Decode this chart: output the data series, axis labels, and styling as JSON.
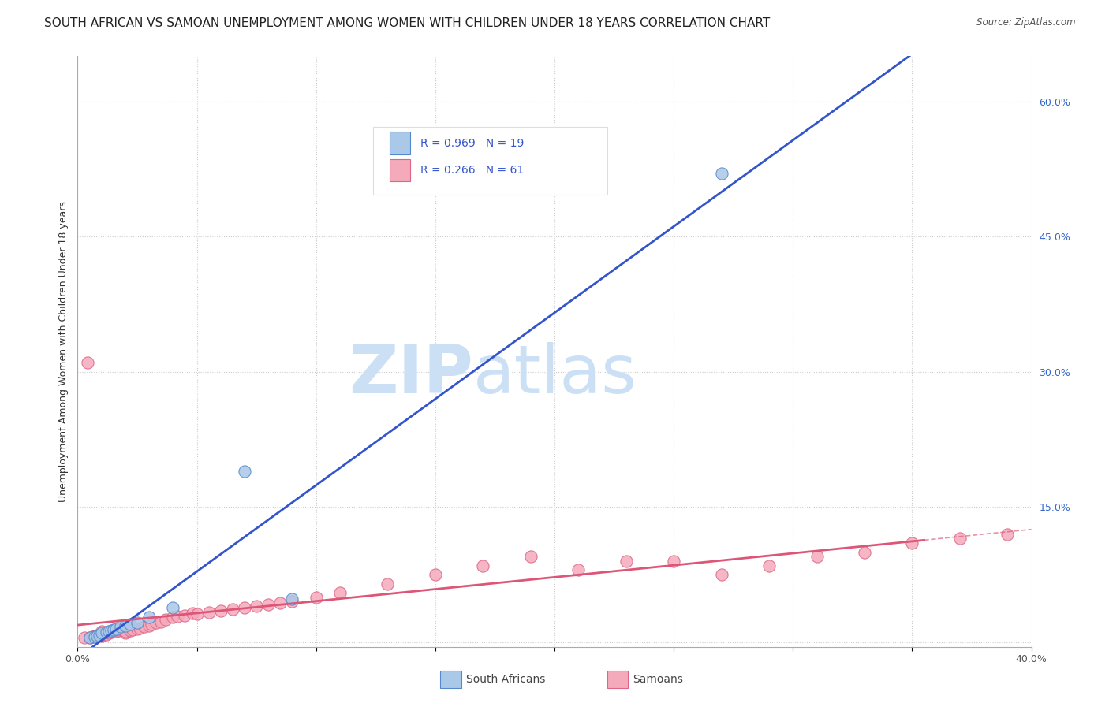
{
  "title": "SOUTH AFRICAN VS SAMOAN UNEMPLOYMENT AMONG WOMEN WITH CHILDREN UNDER 18 YEARS CORRELATION CHART",
  "source": "Source: ZipAtlas.com",
  "ylabel": "Unemployment Among Women with Children Under 18 years",
  "xlim": [
    0.0,
    0.4
  ],
  "ylim": [
    -0.005,
    0.65
  ],
  "xticks": [
    0.0,
    0.05,
    0.1,
    0.15,
    0.2,
    0.25,
    0.3,
    0.35,
    0.4
  ],
  "xtick_labels": [
    "0.0%",
    "",
    "",
    "",
    "",
    "",
    "",
    "",
    "40.0%"
  ],
  "yticks_right": [
    0.0,
    0.15,
    0.3,
    0.45,
    0.6
  ],
  "ytick_labels_right": [
    "",
    "15.0%",
    "30.0%",
    "45.0%",
    "60.0%"
  ],
  "grid_color": "#cccccc",
  "background_color": "#ffffff",
  "watermark_ZIP": "ZIP",
  "watermark_atlas": "atlas",
  "watermark_color": "#cce0f5",
  "south_african_color": "#aac8e8",
  "south_african_edge_color": "#5588cc",
  "south_african_line_color": "#3355cc",
  "samoan_color": "#f5aabb",
  "samoan_edge_color": "#dd6688",
  "samoan_line_color": "#dd5577",
  "legend_R1": "R = 0.969",
  "legend_N1": "N = 19",
  "legend_R2": "R = 0.266",
  "legend_N2": "N = 61",
  "legend_text_color": "#3355cc",
  "south_african_x": [
    0.005,
    0.007,
    0.008,
    0.009,
    0.01,
    0.012,
    0.013,
    0.014,
    0.015,
    0.016,
    0.018,
    0.02,
    0.022,
    0.025,
    0.03,
    0.04,
    0.07,
    0.09,
    0.27
  ],
  "south_african_y": [
    0.005,
    0.006,
    0.007,
    0.008,
    0.01,
    0.011,
    0.012,
    0.013,
    0.014,
    0.015,
    0.017,
    0.018,
    0.02,
    0.022,
    0.028,
    0.038,
    0.19,
    0.048,
    0.52
  ],
  "samoan_x": [
    0.003,
    0.005,
    0.006,
    0.007,
    0.008,
    0.009,
    0.01,
    0.01,
    0.01,
    0.01,
    0.01,
    0.012,
    0.013,
    0.014,
    0.015,
    0.016,
    0.017,
    0.018,
    0.019,
    0.02,
    0.02,
    0.022,
    0.023,
    0.025,
    0.026,
    0.028,
    0.03,
    0.031,
    0.033,
    0.035,
    0.037,
    0.04,
    0.042,
    0.045,
    0.048,
    0.05,
    0.055,
    0.06,
    0.065,
    0.07,
    0.075,
    0.08,
    0.085,
    0.09,
    0.1,
    0.11,
    0.13,
    0.15,
    0.17,
    0.19,
    0.21,
    0.23,
    0.25,
    0.27,
    0.29,
    0.31,
    0.33,
    0.35,
    0.37,
    0.39,
    0.004
  ],
  "samoan_y": [
    0.005,
    0.005,
    0.006,
    0.007,
    0.008,
    0.008,
    0.007,
    0.008,
    0.009,
    0.01,
    0.012,
    0.009,
    0.01,
    0.011,
    0.012,
    0.012,
    0.013,
    0.014,
    0.015,
    0.01,
    0.012,
    0.013,
    0.014,
    0.015,
    0.016,
    0.017,
    0.018,
    0.02,
    0.022,
    0.023,
    0.025,
    0.028,
    0.029,
    0.03,
    0.032,
    0.031,
    0.033,
    0.035,
    0.037,
    0.038,
    0.04,
    0.042,
    0.044,
    0.045,
    0.05,
    0.055,
    0.065,
    0.075,
    0.085,
    0.095,
    0.08,
    0.09,
    0.09,
    0.075,
    0.085,
    0.095,
    0.1,
    0.11,
    0.115,
    0.12,
    0.31
  ],
  "title_fontsize": 11,
  "axis_label_fontsize": 9,
  "tick_fontsize": 9
}
